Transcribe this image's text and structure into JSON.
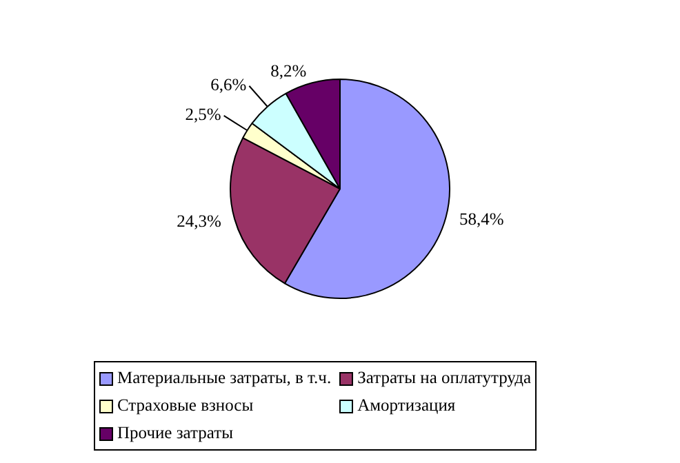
{
  "chart_data": {
    "type": "pie",
    "categories": [
      "Материальные затраты, в т.ч.",
      "Затраты на оплатутруда",
      "Страховые взносы",
      "Амортизация",
      "Прочие затраты"
    ],
    "values": [
      58.4,
      24.3,
      2.5,
      6.6,
      8.2
    ],
    "colors": [
      "#9999ff",
      "#993366",
      "#ffffcc",
      "#ccffff",
      "#660066"
    ],
    "value_labels": [
      "58,4%",
      "24,3%",
      "2,5%",
      "6,6%",
      "8,2%"
    ],
    "legend": "bottom"
  }
}
